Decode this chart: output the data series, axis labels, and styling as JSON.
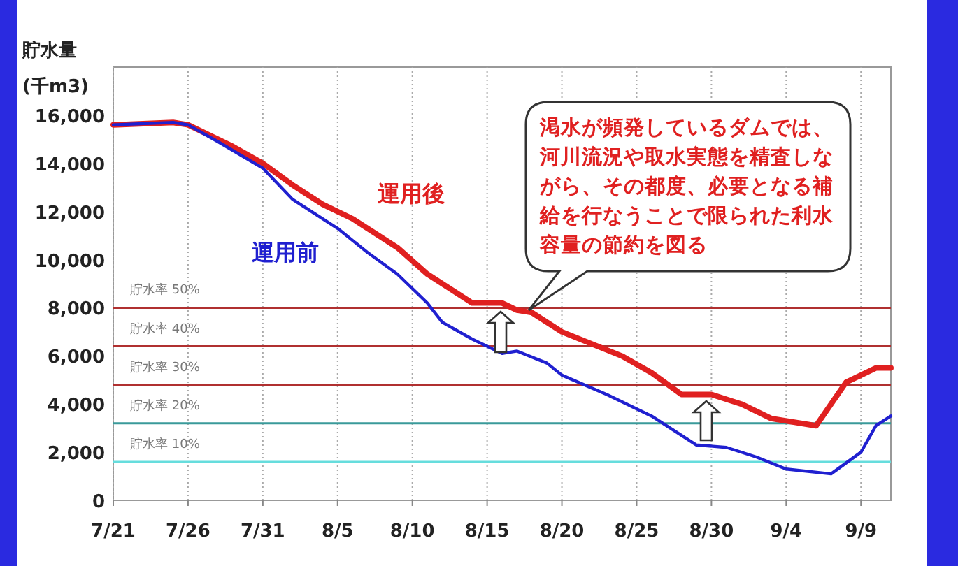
{
  "chart_data": {
    "type": "line",
    "ylabel": "貯水量(千m3)",
    "xlim": [
      "--07-21",
      "--09-11"
    ],
    "ylim": [
      0,
      18000
    ],
    "xticks": [
      {
        "value": "--07-21",
        "label": "7/21"
      },
      {
        "value": "--07-26",
        "label": "7/26"
      },
      {
        "value": "--07-31",
        "label": "7/31"
      },
      {
        "value": "--08-05",
        "label": "8/5"
      },
      {
        "value": "--08-10",
        "label": "8/10"
      },
      {
        "value": "--08-15",
        "label": "8/15"
      },
      {
        "value": "--08-20",
        "label": "8/20"
      },
      {
        "value": "--08-25",
        "label": "8/25"
      },
      {
        "value": "--08-30",
        "label": "8/30"
      },
      {
        "value": "--09-04",
        "label": "9/4"
      },
      {
        "value": "--09-09",
        "label": "9/9"
      }
    ],
    "yticks": [
      {
        "value": 0,
        "label": "0"
      },
      {
        "value": 2000,
        "label": "2,000"
      },
      {
        "value": 4000,
        "label": "4,000"
      },
      {
        "value": 6000,
        "label": "6,000"
      },
      {
        "value": 8000,
        "label": "8,000"
      },
      {
        "value": 10000,
        "label": "10,000"
      },
      {
        "value": 12000,
        "label": "12,000"
      },
      {
        "value": 14000,
        "label": "14,000"
      },
      {
        "value": 16000,
        "label": "16,000"
      }
    ],
    "grid": "x",
    "legend": false,
    "marker": "none",
    "line_style": "solid",
    "series": [
      {
        "name": "運用後",
        "color": "#e02020",
        "x": [
          "--07-21",
          "--07-25",
          "--07-26",
          "--07-29",
          "--07-31",
          "--08-02",
          "--08-04",
          "--08-06",
          "--08-09",
          "--08-11",
          "--08-14",
          "--08-16",
          "--08-17",
          "--08-18",
          "--08-20",
          "--08-24",
          "--08-26",
          "--08-28",
          "--08-30",
          "--09-01",
          "--09-03",
          "--09-06",
          "--09-08",
          "--09-10",
          "--09-11"
        ],
        "values": [
          15600,
          15700,
          15600,
          14700,
          14000,
          13100,
          12300,
          11700,
          10500,
          9400,
          8200,
          8200,
          7900,
          7800,
          7000,
          6000,
          5300,
          4400,
          4400,
          4000,
          3400,
          3100,
          4900,
          5500,
          5500
        ]
      },
      {
        "name": "運用前",
        "color": "#2020d0",
        "x": [
          "--07-21",
          "--07-25",
          "--07-26",
          "--07-28",
          "--07-31",
          "--08-02",
          "--08-05",
          "--08-07",
          "--08-09",
          "--08-11",
          "--08-12",
          "--08-14",
          "--08-16",
          "--08-17",
          "--08-19",
          "--08-20",
          "--08-23",
          "--08-26",
          "--08-29",
          "--08-31",
          "--09-02",
          "--09-04",
          "--09-07",
          "--09-09",
          "--09-10",
          "--09-11"
        ],
        "values": [
          15600,
          15700,
          15600,
          14900,
          13800,
          12500,
          11300,
          10300,
          9400,
          8200,
          7400,
          6700,
          6100,
          6200,
          5700,
          5200,
          4400,
          3500,
          2300,
          2200,
          1800,
          1300,
          1100,
          2000,
          3100,
          3500
        ]
      }
    ],
    "ref_lines": [
      {
        "axis": "y",
        "value": 8000,
        "label": "貯水率 50%",
        "color": "#b03030"
      },
      {
        "axis": "y",
        "value": 6400,
        "label": "貯水率 40%",
        "color": "#b03030"
      },
      {
        "axis": "y",
        "value": 4800,
        "label": "貯水率 30%",
        "color": "#b03030"
      },
      {
        "axis": "y",
        "value": 3200,
        "label": "貯水率 20%",
        "color": "#3a9a9a"
      },
      {
        "axis": "y",
        "value": 1600,
        "label": "貯水率 10%",
        "color": "#66dddd"
      }
    ],
    "annotations": [
      "渇水が頻発しているダムでは、河川流況や取水実態を精査しながら、その都度、必要となる補給を行なうことで限られた利水容量の節約を図る"
    ]
  }
}
